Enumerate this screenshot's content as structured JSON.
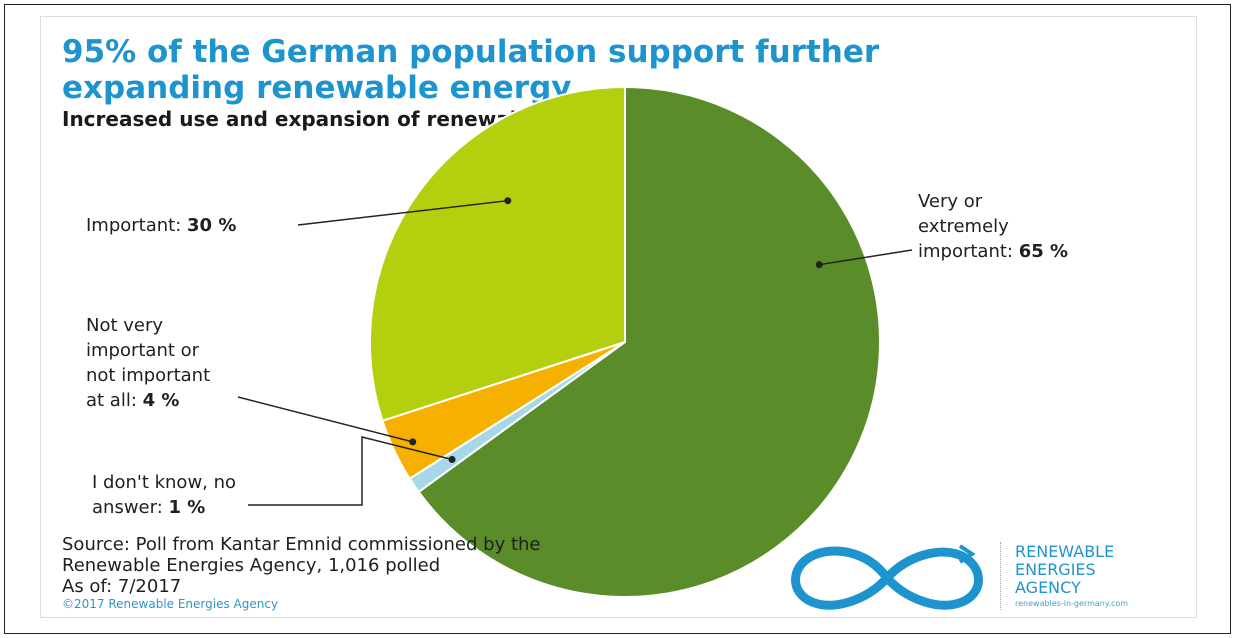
{
  "chart_data": {
    "type": "pie",
    "title": "95% of the German population support further expanding renewable energy",
    "subtitle": "Increased use and expansion of renewable energy is ...",
    "slices": [
      {
        "label_parts": [
          "Very or",
          "extremely",
          "important: "
        ],
        "value_text": "65 %",
        "value": 65,
        "color": "#5b8c2a"
      },
      {
        "label_parts": [
          "I don't know, no",
          "answer: "
        ],
        "value_text": "1 %",
        "value": 1,
        "color": "#a8d8e8"
      },
      {
        "label_parts": [
          "Not very",
          "important or",
          "not important",
          "at all: "
        ],
        "value_text": "4 %",
        "value": 4,
        "color": "#f6b100"
      },
      {
        "label_parts": [
          "Important: "
        ],
        "value_text": "30 %",
        "value": 30,
        "color": "#b4cf0e"
      }
    ]
  },
  "source": {
    "lines": [
      "Source: Poll from Kantar Emnid commissioned by the",
      "Renewable Energies Agency, 1,016 polled",
      "As of: 7/2017"
    ],
    "copyright": "©2017 Renewable Energies Agency"
  },
  "logo": {
    "lines": [
      "RENEWABLE",
      "ENERGIES",
      "AGENCY"
    ],
    "url": "renewables-in-germany.com",
    "color": "#1e94cf"
  }
}
